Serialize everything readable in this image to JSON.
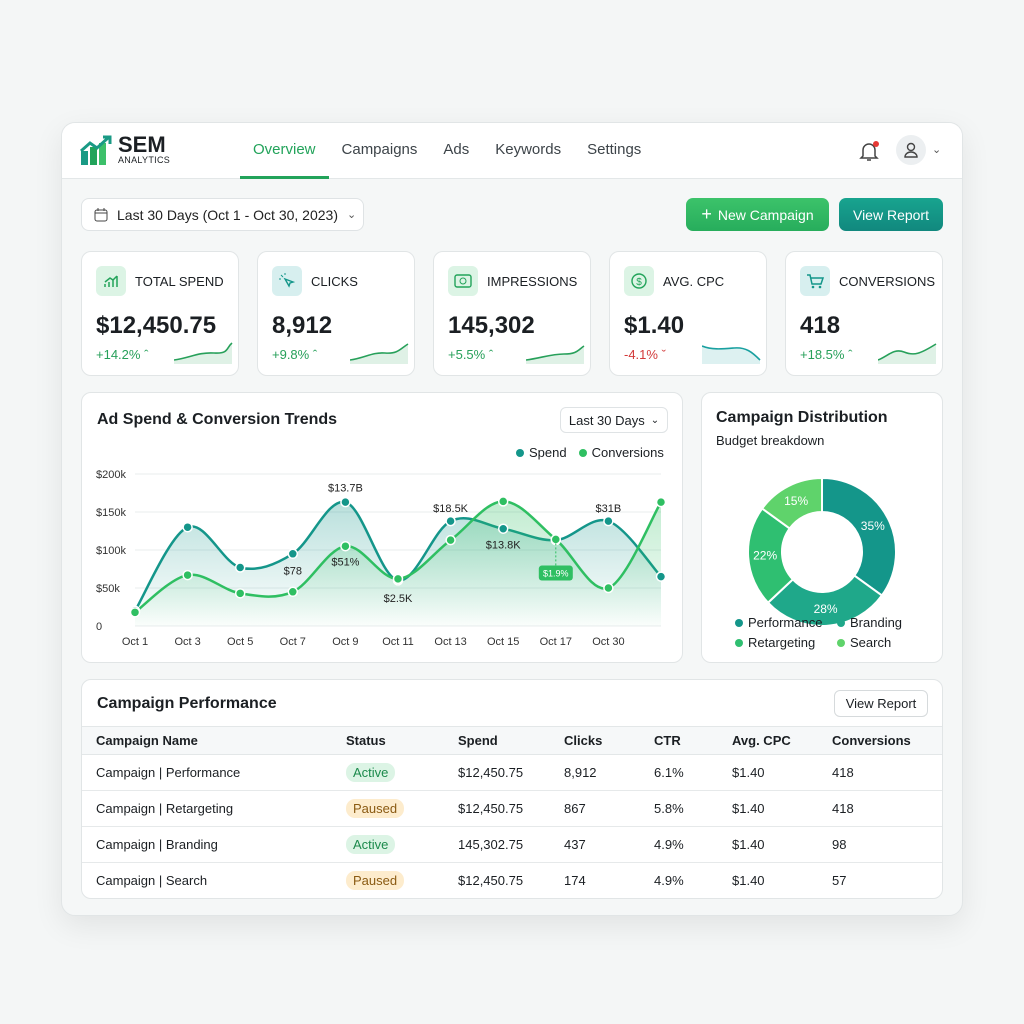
{
  "brand": {
    "name": "SEM",
    "sub": "ANALYTICS"
  },
  "nav": [
    {
      "label": "Overview",
      "active": true
    },
    {
      "label": "Campaigns"
    },
    {
      "label": "Ads"
    },
    {
      "label": "Keywords"
    },
    {
      "label": "Settings"
    }
  ],
  "colors": {
    "accent": "#22a35a",
    "teal": "#14968a",
    "negative": "#d33a3a"
  },
  "date_range": "Last 30 Days (Oct 1 - Oct 30, 2023)",
  "buttons": {
    "new_campaign": "New Campaign",
    "view_report": "View Report"
  },
  "kpis": [
    {
      "label": "TOTAL SPEND",
      "value": "$12,450.75",
      "change": "+14.2%",
      "trend": "up",
      "icon": "chart-bars-icon"
    },
    {
      "label": "CLICKS",
      "value": "8,912",
      "change": "+9.8%",
      "trend": "up",
      "icon": "cursor-click-icon"
    },
    {
      "label": "IMPRESSIONS",
      "value": "145,302",
      "change": "+5.5%",
      "trend": "up",
      "icon": "banknote-icon"
    },
    {
      "label": "AVG. CPC",
      "value": "$1.40",
      "change": "-4.1%",
      "trend": "down",
      "icon": "dollar-circle-icon"
    },
    {
      "label": "CONVERSIONS",
      "value": "418",
      "change": "+18.5%",
      "trend": "up",
      "icon": "cart-icon"
    }
  ],
  "trends": {
    "title": "Ad Spend & Conversion Trends",
    "range": "Last 30 Days"
  },
  "chart_data": [
    {
      "type": "line",
      "x": [
        "Oct 1",
        "Oct 3",
        "Oct 5",
        "Oct 7",
        "Oct 9",
        "Oct 11",
        "Oct 13",
        "Oct 15",
        "Oct 17",
        "Oct 30",
        ""
      ],
      "yticks": [
        "0",
        "$50k",
        "$100k",
        "$150k",
        "$200k"
      ],
      "ylim": [
        0,
        200000
      ],
      "grid": true,
      "legend": "top-right",
      "series": [
        {
          "name": "Spend",
          "color": "#14968a",
          "values": [
            20000,
            130000,
            77000,
            95000,
            163000,
            60000,
            138000,
            128000,
            113000,
            138000,
            65000
          ]
        },
        {
          "name": "Conversions",
          "color": "#2fbf62",
          "values": [
            18000,
            67000,
            43000,
            45000,
            105000,
            62000,
            113000,
            164000,
            114000,
            50000,
            163000
          ]
        }
      ],
      "annotations": [
        {
          "text": "$13.7B",
          "x": "Oct 9",
          "y": 182000
        },
        {
          "text": "$78",
          "x": "Oct 7",
          "y": 73000
        },
        {
          "text": "$51%",
          "x": "Oct 9",
          "y": 85000
        },
        {
          "text": "$2.5K",
          "x": "Oct 11",
          "y": 37000
        },
        {
          "text": "$18.5K",
          "x": "Oct 13",
          "y": 155000
        },
        {
          "text": "$13.8K",
          "x": "Oct 15",
          "y": 107000
        },
        {
          "text": "$1.9%",
          "x": "Oct 17",
          "y": 69000,
          "badge": true
        },
        {
          "text": "$31B",
          "x": "Oct 30",
          "y": 155000
        }
      ]
    },
    {
      "type": "pie",
      "title": "Campaign Distribution",
      "subtitle": "Budget breakdown",
      "slices": [
        {
          "name": "Performance",
          "value": 35,
          "label": "35%",
          "color": "#14968a"
        },
        {
          "name": "Branding",
          "value": 28,
          "label": "28%",
          "color": "#1fa88a"
        },
        {
          "name": "Retargeting",
          "value": 22,
          "label": "22%",
          "color": "#2fbf71"
        },
        {
          "name": "Search",
          "value": 15,
          "label": "15%",
          "color": "#5fd36b"
        }
      ]
    }
  ],
  "table": {
    "title": "Campaign Performance",
    "button": "View Report",
    "headers": [
      "Campaign Name",
      "Status",
      "Spend",
      "Clicks",
      "CTR",
      "Avg. CPC",
      "Conversions"
    ],
    "rows": [
      [
        "Campaign | Performance",
        "Active",
        "$12,450.75",
        "8,912",
        "6.1%",
        "$1.40",
        "418"
      ],
      [
        "Campaign | Retargeting",
        "Paused",
        "$12,450.75",
        "867",
        "5.8%",
        "$1.40",
        "418"
      ],
      [
        "Campaign | Branding",
        "Active",
        "145,302.75",
        "437",
        "4.9%",
        "$1.40",
        "98"
      ],
      [
        "Campaign | Search",
        "Paused",
        "$12,450.75",
        "174",
        "4.9%",
        "$1.40",
        "57"
      ]
    ]
  }
}
